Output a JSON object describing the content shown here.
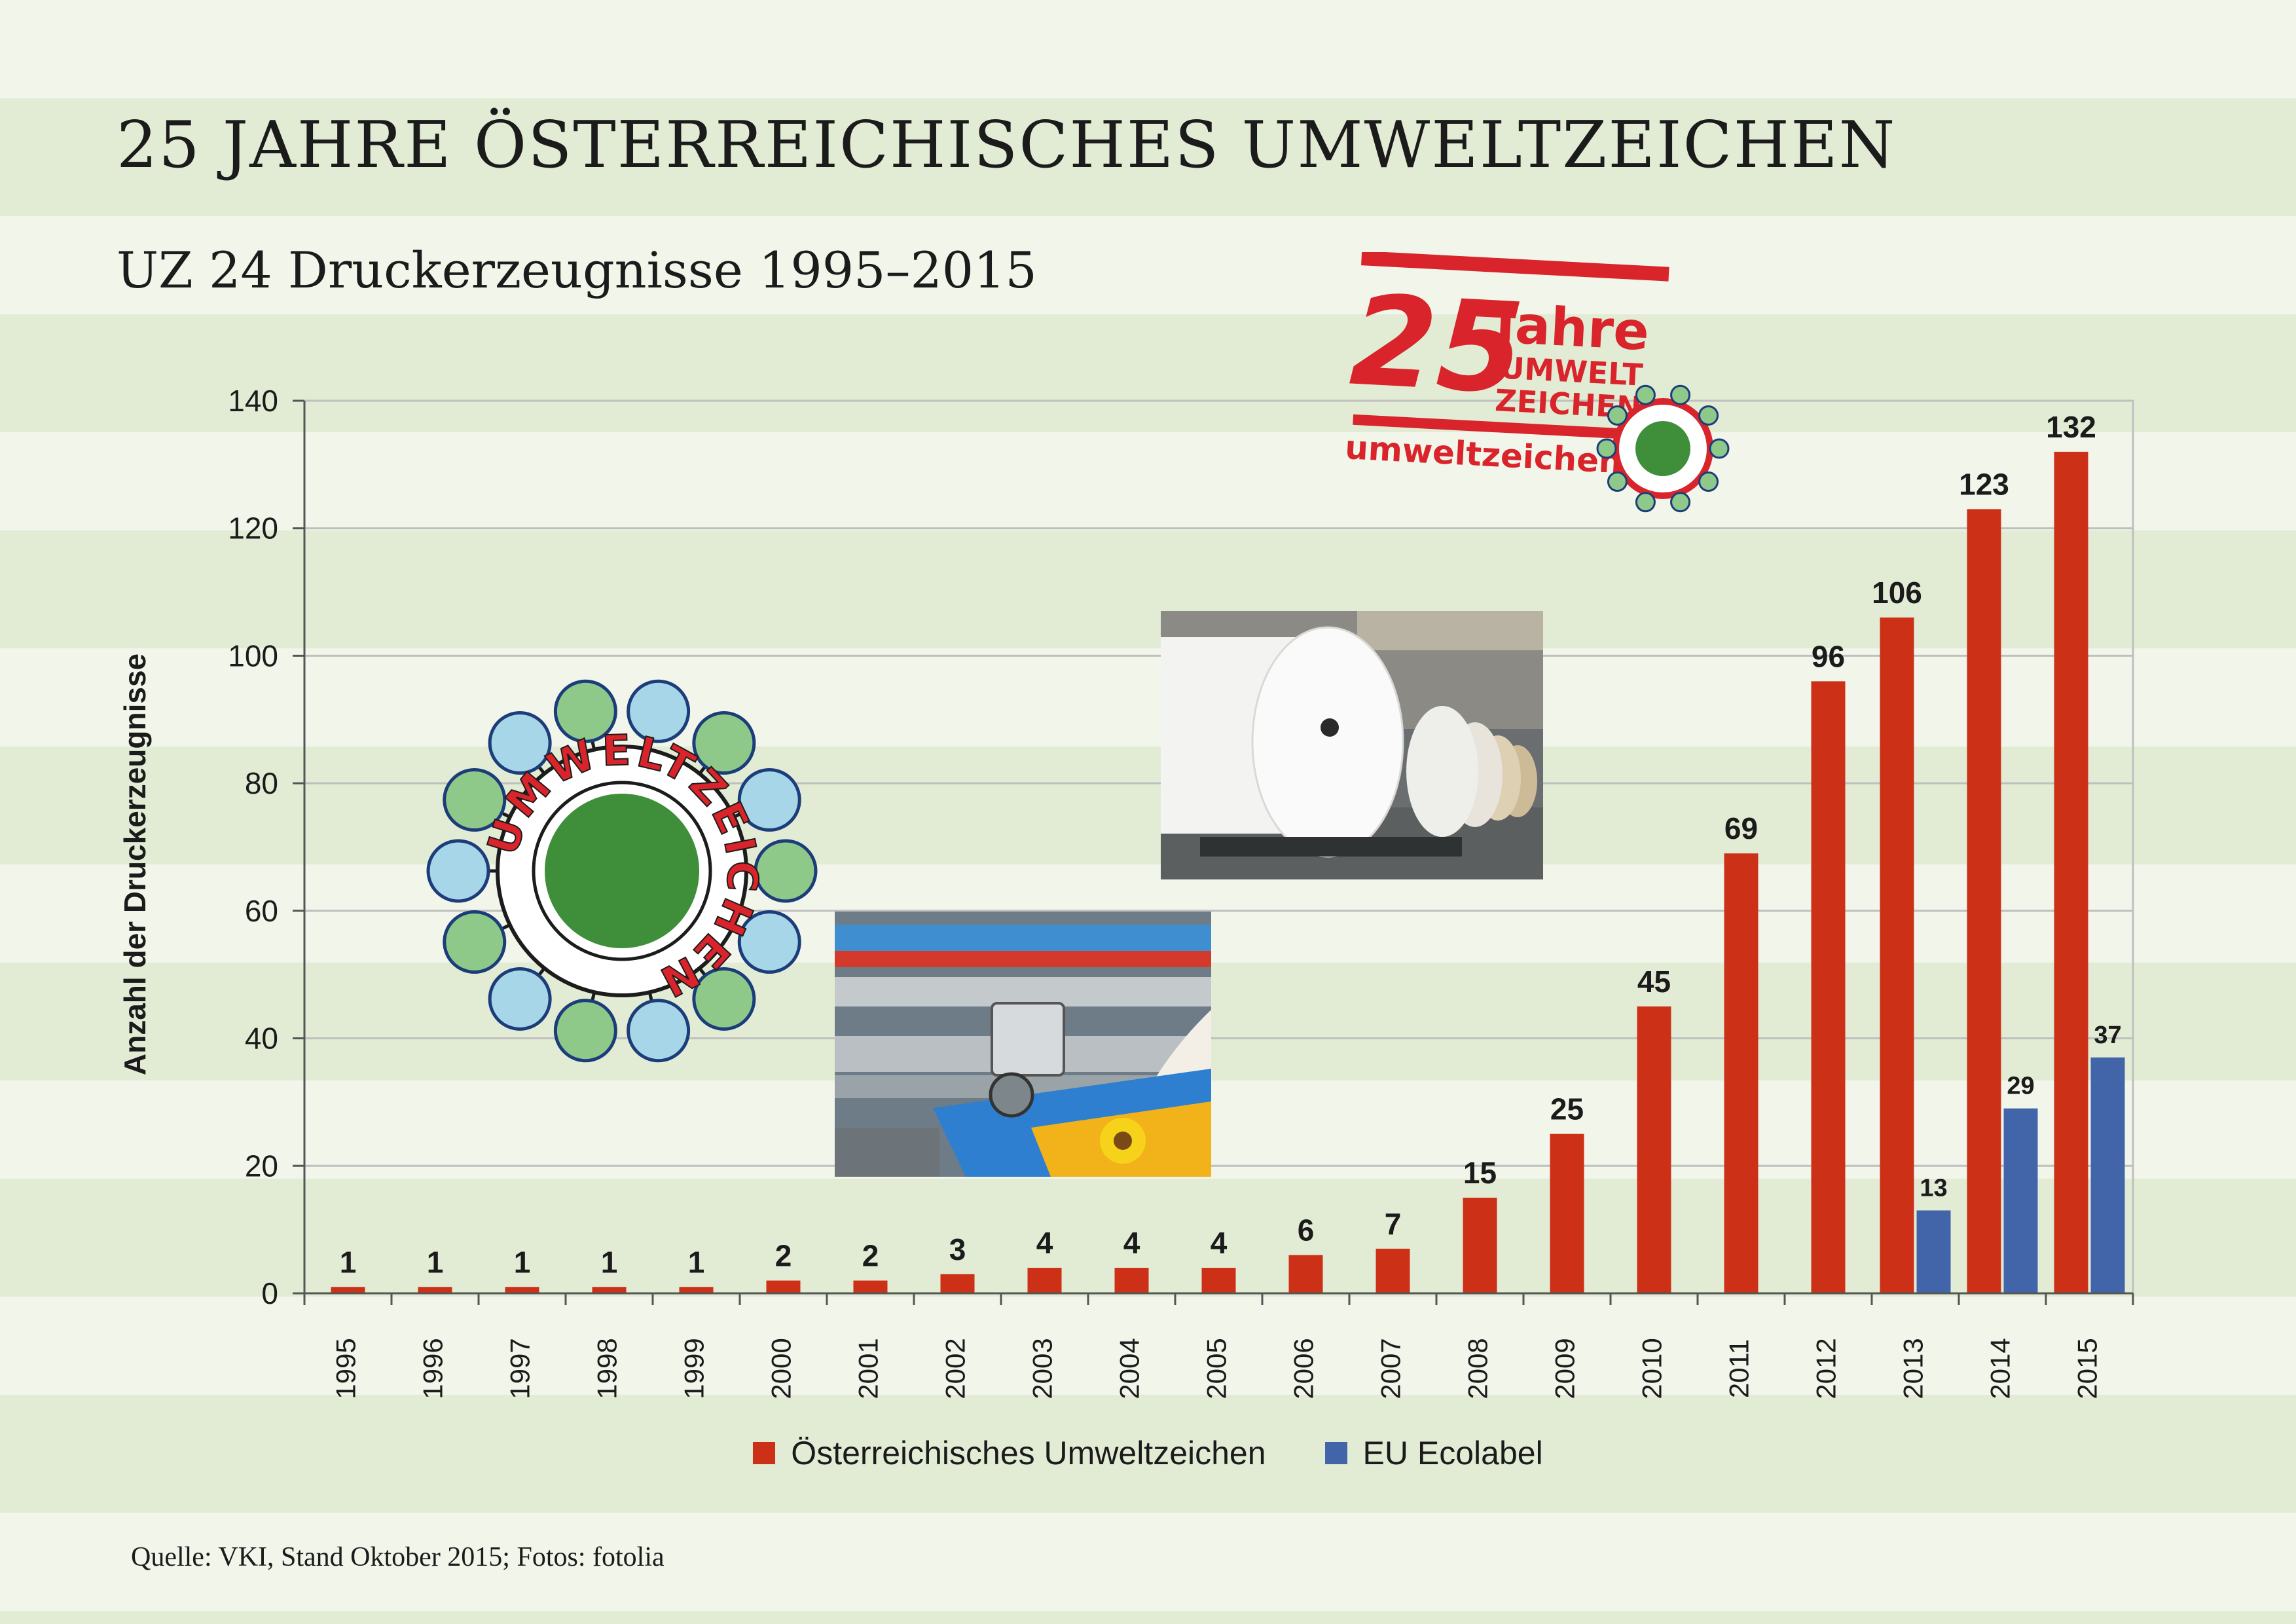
{
  "title": "25 JAHRE ÖSTERREICHISCHES UMWELTZEICHEN",
  "subtitle": "UZ 24 Druckerzeugnisse 1995–2015",
  "source": "Quelle: VKI, Stand Oktober 2015; Fotos: fotolia",
  "stamp": {
    "number": "25",
    "word1": "Jahre",
    "word2": "UMWELT",
    "word3": "ZEICHEN",
    "url": "umweltzeichen.at"
  },
  "logo_text": "UMWELTZEICHEN",
  "colors": {
    "series_red": "#cc3118",
    "series_blue": "#4265aa",
    "stamp_red": "#d8242a",
    "logo_green": "#3f8f3a",
    "grid": "#bfbfbf"
  },
  "chart_data": {
    "type": "bar",
    "ylabel": "Anzahl der Druckerzeugnisse",
    "xlabel": "",
    "ylim": [
      0,
      140
    ],
    "yticks": [
      0,
      20,
      40,
      60,
      80,
      100,
      120,
      140
    ],
    "grid": true,
    "legend_position": "bottom",
    "categories": [
      "1995",
      "1996",
      "1997",
      "1998",
      "1999",
      "2000",
      "2001",
      "2002",
      "2003",
      "2004",
      "2005",
      "2006",
      "2007",
      "2008",
      "2009",
      "2010",
      "2011",
      "2012",
      "2013",
      "2014",
      "2015"
    ],
    "series": [
      {
        "name": "Österreichisches Umweltzeichen",
        "color": "#cc3118",
        "values": [
          1,
          1,
          1,
          1,
          1,
          2,
          2,
          3,
          4,
          4,
          4,
          6,
          7,
          15,
          25,
          45,
          69,
          96,
          106,
          123,
          132
        ]
      },
      {
        "name": "EU Ecolabel",
        "color": "#4265aa",
        "values": [
          null,
          null,
          null,
          null,
          null,
          null,
          null,
          null,
          null,
          null,
          null,
          null,
          null,
          null,
          null,
          null,
          null,
          null,
          13,
          29,
          37
        ]
      }
    ]
  }
}
